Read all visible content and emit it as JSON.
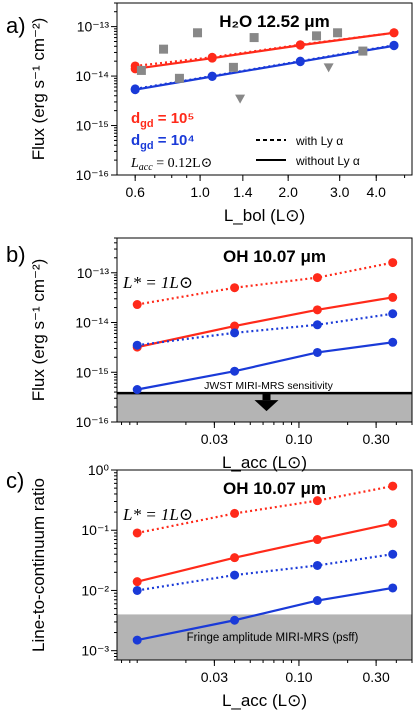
{
  "chart_data": [
    {
      "panel_label": "a)",
      "type": "line",
      "title": "H₂O 12.52 μm",
      "xlabel": "L_bol (L⊙)",
      "ylabel": "Flux (erg s⁻¹ cm⁻²)",
      "x_scale": "log",
      "y_scale": "log",
      "xlim": [
        0.52,
        5.3
      ],
      "ylim": [
        1e-16,
        3e-13
      ],
      "xticks": [
        0.6,
        1.0,
        1.4,
        2.0,
        3.0,
        4.0
      ],
      "xtick_labels": [
        "0.6",
        "1.0",
        "1.4",
        "2.0",
        "3.0",
        "4.0"
      ],
      "yticks": [
        1e-16,
        1e-15,
        1e-14,
        1e-13
      ],
      "ytick_labels": [
        "10⁻¹⁶",
        "10⁻¹⁵",
        "10⁻¹⁴",
        "10⁻¹³"
      ],
      "series": [
        {
          "name": "",
          "color": "#ff2a1a",
          "style": "dotted",
          "marker": "circle",
          "x": [
            0.6,
            1.1,
            2.2,
            4.6
          ],
          "y": [
            1.6e-14,
            2.4e-14,
            4.3e-14,
            7.5e-14
          ]
        },
        {
          "name": "",
          "color": "#ff2a1a",
          "style": "solid",
          "marker": "circle",
          "x": [
            0.6,
            1.1,
            2.2,
            4.6
          ],
          "y": [
            1.4e-14,
            2.3e-14,
            4.2e-14,
            7.5e-14
          ]
        },
        {
          "name": "",
          "color": "#1a3ad8",
          "style": "dotted",
          "marker": "circle",
          "x": [
            0.6,
            1.1,
            2.2,
            4.6
          ],
          "y": [
            5.5e-15,
            1e-14,
            2e-14,
            4.2e-14
          ]
        },
        {
          "name": "",
          "color": "#1a3ad8",
          "style": "solid",
          "marker": "circle",
          "x": [
            0.6,
            1.1,
            2.2,
            4.6
          ],
          "y": [
            5.3e-15,
            9.8e-15,
            1.95e-14,
            4.1e-14
          ]
        },
        {
          "name": "",
          "color": "#888888",
          "style": "none",
          "marker": "square",
          "x": [
            0.63,
            0.75,
            0.85,
            0.98,
            1.3,
            1.53,
            2.5,
            2.95,
            3.6
          ],
          "y": [
            1.3e-14,
            3.5e-14,
            9e-15,
            7.5e-14,
            1.5e-14,
            6e-14,
            6.5e-14,
            7.5e-14,
            3.2e-14
          ]
        },
        {
          "name": "",
          "color": "#888888",
          "style": "none",
          "marker": "triangle-down",
          "x": [
            1.37,
            2.75
          ],
          "y": [
            3.5e-15,
            1.5e-14
          ]
        }
      ],
      "annotations": {
        "dgd_red": "d",
        "dgd_red_sub": "gd",
        "dgd_red_val": " = 10⁵",
        "dgd_blue": "d",
        "dgd_blue_sub": "gd",
        "dgd_blue_val": " = 10⁴",
        "lacc_text": "L",
        "lacc_sub": "acc",
        "lacc_val": " = 0.12L⊙",
        "legend_dashed": "with Ly α",
        "legend_solid": "without Ly α"
      }
    },
    {
      "panel_label": "b)",
      "type": "line",
      "title": "OH 10.07 μm",
      "subtitle": "L* = 1L⊙",
      "xlabel": "L_acc (L⊙)",
      "ylabel": "Flux (erg s⁻¹ cm⁻²)",
      "x_scale": "log",
      "y_scale": "log",
      "xlim": [
        0.0075,
        0.5
      ],
      "ylim": [
        1e-16,
        5e-13
      ],
      "xticks": [
        0.03,
        0.1,
        0.3
      ],
      "xtick_labels": [
        "0.03",
        "0.10",
        "0.30"
      ],
      "yticks": [
        1e-16,
        1e-15,
        1e-14,
        1e-13
      ],
      "ytick_labels": [
        "10⁻¹⁶",
        "10⁻¹⁵",
        "10⁻¹⁴",
        "10⁻¹³"
      ],
      "x": [
        0.01,
        0.04,
        0.13,
        0.38
      ],
      "series": [
        {
          "name": "",
          "color": "#ff2a1a",
          "style": "dotted",
          "marker": "circle",
          "values": [
            2.3e-14,
            5e-14,
            8e-14,
            1.6e-13
          ]
        },
        {
          "name": "",
          "color": "#ff2a1a",
          "style": "solid",
          "marker": "circle",
          "values": [
            3.2e-15,
            8.5e-15,
            1.8e-14,
            3.2e-14
          ]
        },
        {
          "name": "",
          "color": "#1a3ad8",
          "style": "dotted",
          "marker": "circle",
          "values": [
            3.5e-15,
            6.2e-15,
            9e-15,
            1.5e-14
          ]
        },
        {
          "name": "",
          "color": "#1a3ad8",
          "style": "solid",
          "marker": "circle",
          "values": [
            4.5e-16,
            1.05e-15,
            2.5e-15,
            4e-15
          ]
        }
      ],
      "shaded_region": {
        "label": "JWST MIRI-MRS sensitivity",
        "y_from": 1e-16,
        "y_to": 3.8e-16
      }
    },
    {
      "panel_label": "c)",
      "type": "line",
      "title": "OH 10.07 μm",
      "subtitle": "L* = 1L⊙",
      "xlabel": "L_acc (L⊙)",
      "ylabel": "Line-to-continuum ratio",
      "x_scale": "log",
      "y_scale": "log",
      "xlim": [
        0.0075,
        0.5
      ],
      "ylim": [
        0.0007,
        1.0
      ],
      "xticks": [
        0.03,
        0.1,
        0.3
      ],
      "xtick_labels": [
        "0.03",
        "0.10",
        "0.30"
      ],
      "yticks": [
        0.001,
        0.01,
        0.1,
        1.0
      ],
      "ytick_labels": [
        "10⁻³",
        "10⁻²",
        "10⁻¹",
        "10⁰"
      ],
      "x": [
        0.01,
        0.04,
        0.13,
        0.38
      ],
      "series": [
        {
          "name": "",
          "color": "#ff2a1a",
          "style": "dotted",
          "marker": "circle",
          "values": [
            0.09,
            0.19,
            0.31,
            0.54
          ]
        },
        {
          "name": "",
          "color": "#ff2a1a",
          "style": "solid",
          "marker": "circle",
          "values": [
            0.014,
            0.035,
            0.07,
            0.13
          ]
        },
        {
          "name": "",
          "color": "#1a3ad8",
          "style": "dotted",
          "marker": "circle",
          "values": [
            0.01,
            0.018,
            0.026,
            0.04
          ]
        },
        {
          "name": "",
          "color": "#1a3ad8",
          "style": "solid",
          "marker": "circle",
          "values": [
            0.0015,
            0.0032,
            0.0068,
            0.011
          ]
        }
      ],
      "shaded_region": {
        "label": "Fringe amplitude MIRI-MRS (psff)",
        "y_from": 0.0007,
        "y_to": 0.004
      }
    }
  ]
}
